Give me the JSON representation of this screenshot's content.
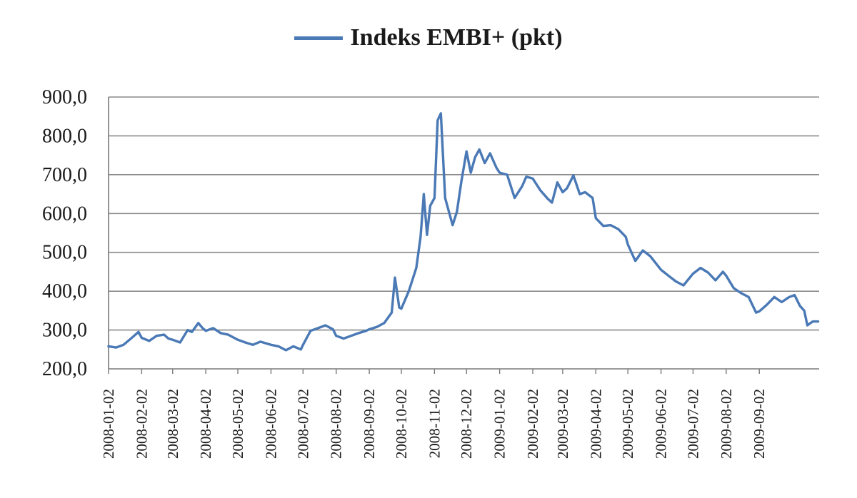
{
  "chart_data": {
    "type": "line",
    "series": [
      {
        "name": "Indeks EMBI+ (pkt)",
        "color": "#4a79b5",
        "points": [
          [
            "2008-01-02",
            258
          ],
          [
            "2008-01-09",
            255
          ],
          [
            "2008-01-16",
            262
          ],
          [
            "2008-01-23",
            278
          ],
          [
            "2008-01-30",
            295
          ],
          [
            "2008-02-02",
            280
          ],
          [
            "2008-02-09",
            272
          ],
          [
            "2008-02-16",
            285
          ],
          [
            "2008-02-23",
            288
          ],
          [
            "2008-02-27",
            278
          ],
          [
            "2008-03-02",
            275
          ],
          [
            "2008-03-09",
            268
          ],
          [
            "2008-03-16",
            300
          ],
          [
            "2008-03-20",
            295
          ],
          [
            "2008-03-26",
            318
          ],
          [
            "2008-03-30",
            305
          ],
          [
            "2008-04-02",
            298
          ],
          [
            "2008-04-09",
            305
          ],
          [
            "2008-04-16",
            292
          ],
          [
            "2008-04-23",
            288
          ],
          [
            "2008-05-02",
            275
          ],
          [
            "2008-05-09",
            268
          ],
          [
            "2008-05-16",
            262
          ],
          [
            "2008-05-23",
            270
          ],
          [
            "2008-06-02",
            262
          ],
          [
            "2008-06-09",
            258
          ],
          [
            "2008-06-16",
            248
          ],
          [
            "2008-06-23",
            258
          ],
          [
            "2008-06-30",
            250
          ],
          [
            "2008-07-02",
            262
          ],
          [
            "2008-07-09",
            298
          ],
          [
            "2008-07-16",
            305
          ],
          [
            "2008-07-23",
            312
          ],
          [
            "2008-07-30",
            302
          ],
          [
            "2008-08-02",
            285
          ],
          [
            "2008-08-09",
            278
          ],
          [
            "2008-08-16",
            285
          ],
          [
            "2008-08-23",
            292
          ],
          [
            "2008-08-30",
            298
          ],
          [
            "2008-09-02",
            302
          ],
          [
            "2008-09-09",
            308
          ],
          [
            "2008-09-16",
            318
          ],
          [
            "2008-09-23",
            345
          ],
          [
            "2008-09-26",
            435
          ],
          [
            "2008-09-30",
            358
          ],
          [
            "2008-10-02",
            355
          ],
          [
            "2008-10-09",
            400
          ],
          [
            "2008-10-16",
            460
          ],
          [
            "2008-10-20",
            540
          ],
          [
            "2008-10-23",
            650
          ],
          [
            "2008-10-26",
            545
          ],
          [
            "2008-10-29",
            620
          ],
          [
            "2008-11-02",
            640
          ],
          [
            "2008-11-05",
            840
          ],
          [
            "2008-11-08",
            858
          ],
          [
            "2008-11-12",
            640
          ],
          [
            "2008-11-16",
            600
          ],
          [
            "2008-11-19",
            570
          ],
          [
            "2008-11-23",
            605
          ],
          [
            "2008-11-27",
            680
          ],
          [
            "2008-12-02",
            760
          ],
          [
            "2008-12-06",
            705
          ],
          [
            "2008-12-10",
            745
          ],
          [
            "2008-12-14",
            765
          ],
          [
            "2008-12-19",
            730
          ],
          [
            "2008-12-24",
            755
          ],
          [
            "2008-12-30",
            718
          ],
          [
            "2009-01-02",
            705
          ],
          [
            "2009-01-09",
            700
          ],
          [
            "2009-01-16",
            640
          ],
          [
            "2009-01-23",
            670
          ],
          [
            "2009-01-27",
            695
          ],
          [
            "2009-02-02",
            690
          ],
          [
            "2009-02-09",
            660
          ],
          [
            "2009-02-16",
            638
          ],
          [
            "2009-02-20",
            628
          ],
          [
            "2009-02-25",
            680
          ],
          [
            "2009-03-02",
            655
          ],
          [
            "2009-03-06",
            665
          ],
          [
            "2009-03-12",
            698
          ],
          [
            "2009-03-18",
            650
          ],
          [
            "2009-03-23",
            655
          ],
          [
            "2009-03-30",
            640
          ],
          [
            "2009-04-02",
            588
          ],
          [
            "2009-04-09",
            568
          ],
          [
            "2009-04-16",
            570
          ],
          [
            "2009-04-23",
            560
          ],
          [
            "2009-04-30",
            540
          ],
          [
            "2009-05-02",
            520
          ],
          [
            "2009-05-09",
            478
          ],
          [
            "2009-05-16",
            505
          ],
          [
            "2009-05-23",
            490
          ],
          [
            "2009-06-02",
            455
          ],
          [
            "2009-06-09",
            440
          ],
          [
            "2009-06-16",
            425
          ],
          [
            "2009-06-23",
            415
          ],
          [
            "2009-07-02",
            445
          ],
          [
            "2009-07-09",
            460
          ],
          [
            "2009-07-16",
            448
          ],
          [
            "2009-07-23",
            428
          ],
          [
            "2009-07-30",
            450
          ],
          [
            "2009-08-02",
            440
          ],
          [
            "2009-08-09",
            408
          ],
          [
            "2009-08-16",
            395
          ],
          [
            "2009-08-23",
            385
          ],
          [
            "2009-08-30",
            345
          ],
          [
            "2009-09-02",
            348
          ],
          [
            "2009-09-09",
            365
          ],
          [
            "2009-09-16",
            385
          ],
          [
            "2009-09-23",
            372
          ],
          [
            "2009-09-30",
            385
          ],
          [
            "2009-10-05",
            390
          ],
          [
            "2009-10-10",
            362
          ],
          [
            "2009-10-14",
            350
          ],
          [
            "2009-10-17",
            312
          ],
          [
            "2009-10-22",
            322
          ],
          [
            "2009-10-27",
            322
          ]
        ]
      }
    ],
    "x_tick_labels": [
      "2008-01-02",
      "2008-02-02",
      "2008-03-02",
      "2008-04-02",
      "2008-05-02",
      "2008-06-02",
      "2008-07-02",
      "2008-08-02",
      "2008-09-02",
      "2008-10-02",
      "2008-11-02",
      "2008-12-02",
      "2009-01-02",
      "2009-02-02",
      "2009-03-02",
      "2009-04-02",
      "2009-05-02",
      "2009-06-02",
      "2009-07-02",
      "2009-08-02",
      "2009-09-02"
    ],
    "y_tick_labels": [
      "200,0",
      "300,0",
      "400,0",
      "500,0",
      "600,0",
      "700,0",
      "800,0",
      "900,0"
    ],
    "y_ticks": [
      200,
      300,
      400,
      500,
      600,
      700,
      800,
      900
    ],
    "xlim": [
      "2008-01-02",
      "2009-10-28"
    ],
    "ylim": [
      200,
      900
    ],
    "grid": "horizontal",
    "legend_position": "top-center"
  }
}
